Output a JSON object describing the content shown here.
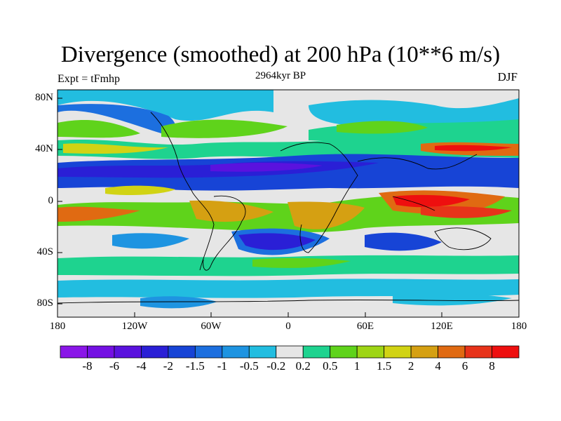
{
  "title": "Divergence (smoothed) at 200 hPa (10**6 m/s)",
  "left_label": "Expt = tFmhp",
  "center_label": "2964kyr BP",
  "right_label": "DJF",
  "lat_ticks": [
    "80N",
    "40N",
    "0",
    "40S",
    "80S"
  ],
  "lon_ticks": [
    "180",
    "120W",
    "60W",
    "0",
    "60E",
    "120E",
    "180"
  ],
  "colorbar": {
    "colors": [
      "#8a16e8",
      "#7410e3",
      "#5a12de",
      "#2a1fd6",
      "#1744d6",
      "#1c6fdf",
      "#1e94e1",
      "#22bde0",
      "#e6e6e6",
      "#1ed38f",
      "#5fd31b",
      "#9ed515",
      "#d1d314",
      "#d5a012",
      "#e06a12",
      "#e7331a",
      "#ee0f0f"
    ],
    "labels": [
      "-8",
      "-6",
      "-4",
      "-2",
      "-1.5",
      "-1",
      "-0.5",
      "-0.2",
      "0.2",
      "0.5",
      "1",
      "1.5",
      "2",
      "4",
      "6",
      "8"
    ]
  }
}
